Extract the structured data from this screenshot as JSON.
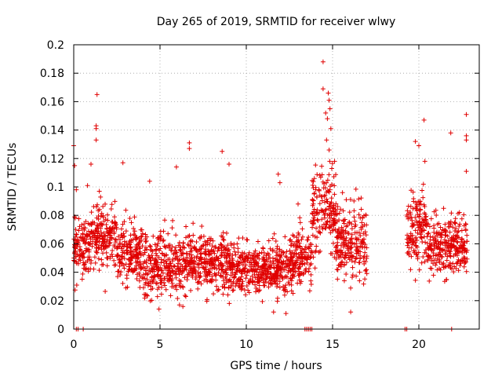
{
  "chart_data": {
    "type": "scatter",
    "title": "Day 265 of 2019, SRMTID for receiver wlwy",
    "xlabel": "GPS time / hours",
    "ylabel": "SRMTID / TECUs",
    "xlim": [
      0,
      23.5
    ],
    "ylim": [
      0,
      0.2
    ],
    "x_ticks": [
      "0",
      "5",
      "10",
      "15",
      "20"
    ],
    "x_tick_values": [
      0,
      5,
      10,
      15,
      20
    ],
    "y_ticks": [
      "0",
      "0.02",
      "0.04",
      "0.06",
      "0.08",
      "0.1",
      "0.12",
      "0.14",
      "0.16",
      "0.18",
      "0.2"
    ],
    "y_tick_values": [
      0,
      0.02,
      0.04,
      0.06,
      0.08,
      0.1,
      0.12,
      0.14,
      0.16,
      0.18,
      0.2
    ],
    "grid": true,
    "marker": "+",
    "color": "#e00000",
    "series": [
      {
        "name": "SRMTID",
        "segments": [
          {
            "x_range": [
              0.0,
              1.0
            ],
            "mean": 0.058,
            "spread": 0.014,
            "outliers": [
              [
                0.0,
                0.129
              ],
              [
                0.05,
                0.115
              ],
              [
                0.15,
                0.098
              ]
            ]
          },
          {
            "x_range": [
              1.0,
              2.5
            ],
            "mean": 0.066,
            "spread": 0.016,
            "outliers": [
              [
                1.35,
                0.165
              ],
              [
                1.3,
                0.143
              ],
              [
                1.3,
                0.141
              ],
              [
                1.3,
                0.133
              ],
              [
                1.0,
                0.116
              ],
              [
                0.8,
                0.101
              ]
            ]
          },
          {
            "x_range": [
              2.5,
              4.0
            ],
            "mean": 0.054,
            "spread": 0.015,
            "outliers": [
              [
                2.85,
                0.117
              ]
            ]
          },
          {
            "x_range": [
              4.0,
              6.5
            ],
            "mean": 0.045,
            "spread": 0.014,
            "outliers": [
              [
                5.95,
                0.114
              ],
              [
                4.4,
                0.104
              ]
            ]
          },
          {
            "x_range": [
              6.5,
              9.0
            ],
            "mean": 0.047,
            "spread": 0.014,
            "outliers": [
              [
                6.7,
                0.131
              ],
              [
                6.7,
                0.127
              ],
              [
                8.6,
                0.125
              ],
              [
                9.0,
                0.116
              ]
            ]
          },
          {
            "x_range": [
              9.0,
              12.5
            ],
            "mean": 0.042,
            "spread": 0.012,
            "outliers": [
              [
                11.85,
                0.109
              ],
              [
                11.95,
                0.103
              ],
              [
                12.3,
                0.011
              ]
            ]
          },
          {
            "x_range": [
              12.5,
              13.8
            ],
            "mean": 0.048,
            "spread": 0.014,
            "outliers": [
              [
                13.0,
                0.088
              ]
            ]
          },
          {
            "x_range": [
              13.8,
              15.2
            ],
            "mean": 0.08,
            "spread": 0.022,
            "outliers": [
              [
                14.45,
                0.188
              ],
              [
                14.45,
                0.169
              ],
              [
                14.75,
                0.166
              ],
              [
                14.8,
                0.161
              ],
              [
                14.85,
                0.155
              ],
              [
                14.6,
                0.152
              ],
              [
                14.7,
                0.148
              ],
              [
                14.9,
                0.141
              ],
              [
                14.65,
                0.133
              ],
              [
                14.8,
                0.126
              ]
            ]
          },
          {
            "x_range": [
              15.2,
              17.0
            ],
            "mean": 0.062,
            "spread": 0.018,
            "outliers": [
              [
                16.05,
                0.012
              ]
            ]
          },
          {
            "x_range": [
              19.3,
              20.5
            ],
            "mean": 0.07,
            "spread": 0.018,
            "outliers": [
              [
                20.3,
                0.147
              ],
              [
                19.8,
                0.132
              ],
              [
                20.0,
                0.129
              ],
              [
                20.35,
                0.118
              ]
            ]
          },
          {
            "x_range": [
              20.5,
              22.8
            ],
            "mean": 0.058,
            "spread": 0.016,
            "outliers": [
              [
                22.75,
                0.151
              ],
              [
                22.75,
                0.136
              ],
              [
                22.75,
                0.133
              ],
              [
                21.85,
                0.138
              ],
              [
                22.75,
                0.111
              ]
            ]
          }
        ],
        "zero_points": [
          0.15,
          0.25,
          0.55,
          13.4,
          13.5,
          13.6,
          13.7,
          13.8,
          19.2,
          19.3,
          21.9
        ]
      }
    ]
  }
}
